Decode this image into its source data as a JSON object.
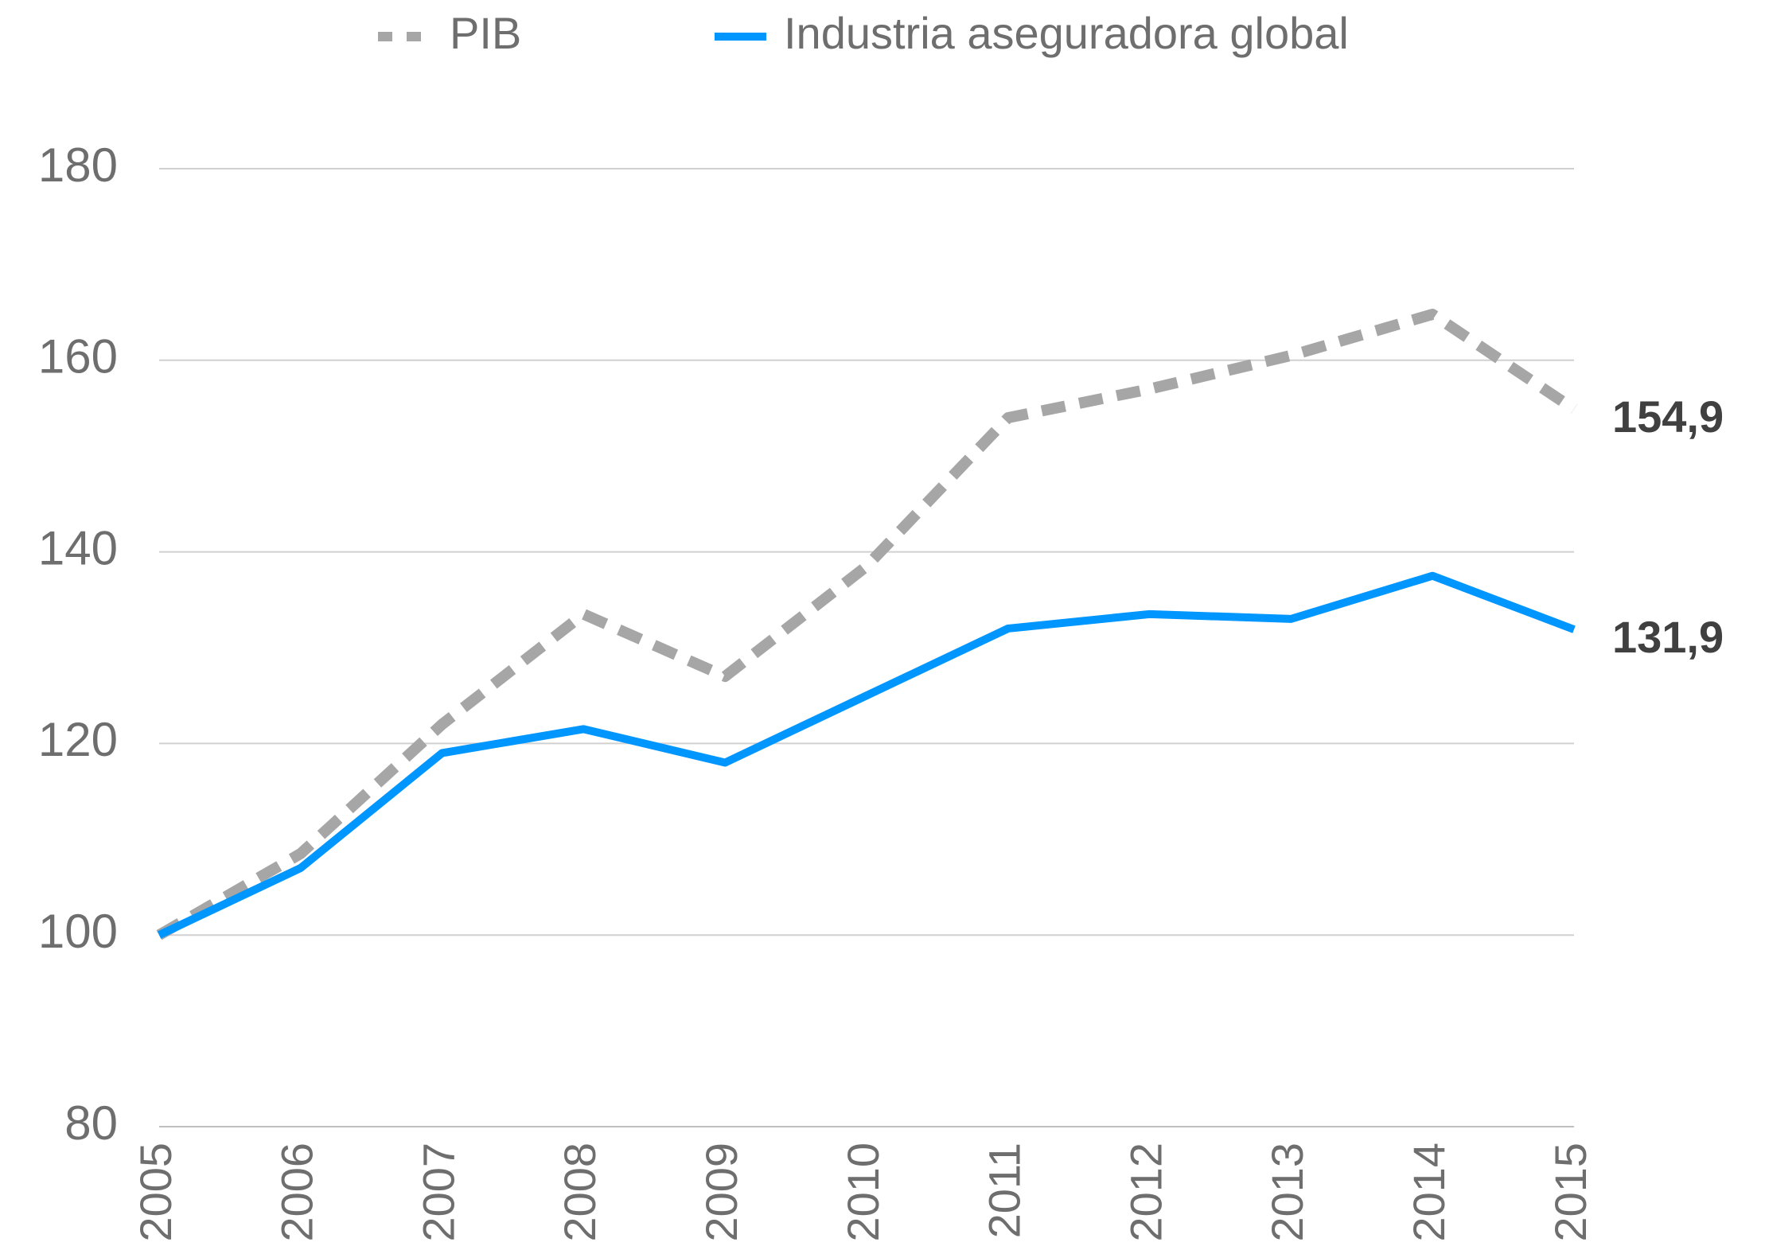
{
  "chart_data": {
    "type": "line",
    "categories": [
      "2005",
      "2006",
      "2007",
      "2008",
      "2009",
      "2010",
      "2011",
      "2012",
      "2013",
      "2014",
      "2015"
    ],
    "series": [
      {
        "name": "PIB",
        "color": "#a6a6a6",
        "dashed": true,
        "values": [
          100,
          108.5,
          122,
          133.5,
          127,
          138.5,
          154,
          157,
          160.5,
          164.8,
          154.9
        ],
        "value_labels": [
          null,
          null,
          null,
          null,
          null,
          null,
          null,
          null,
          null,
          null,
          "154,9"
        ]
      },
      {
        "name": "Industria aseguradora global",
        "color": "#0096ff",
        "dashed": false,
        "values": [
          100,
          107,
          119,
          121.5,
          118,
          125,
          132,
          133.5,
          133,
          137.5,
          131.9
        ],
        "value_labels": [
          null,
          null,
          null,
          null,
          null,
          null,
          null,
          null,
          null,
          null,
          "131,9"
        ]
      }
    ],
    "ylim": [
      80,
      180
    ],
    "yticks": [
      80,
      100,
      120,
      140,
      160,
      180
    ],
    "grid": true,
    "legend": "top"
  }
}
